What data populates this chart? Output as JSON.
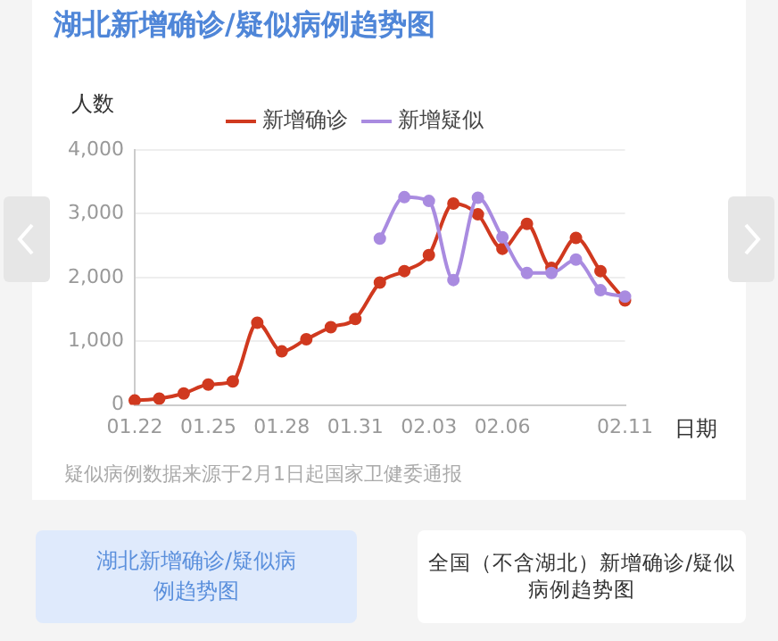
{
  "chart_data": {
    "type": "line",
    "title": "湖北新增确诊/疑似病例趋势图",
    "ylabel": "人数",
    "xlabel": "日期",
    "categories": [
      "01.22",
      null,
      null,
      "01.25",
      null,
      null,
      "01.28",
      null,
      null,
      "01.31",
      null,
      null,
      "02.03",
      null,
      null,
      "02.06",
      null,
      null,
      null,
      null,
      "02.11"
    ],
    "series": [
      {
        "name": "新增确诊",
        "color": "#d0391f",
        "values": [
          70,
          100,
          180,
          320,
          370,
          1290,
          840,
          1030,
          1220,
          1350,
          1920,
          2100,
          2350,
          3160,
          2990,
          2450,
          2840,
          2150,
          2620,
          2100,
          1640
        ]
      },
      {
        "name": "新增疑似",
        "color": "#a98be0",
        "values": [
          null,
          null,
          null,
          null,
          null,
          null,
          null,
          null,
          null,
          null,
          2610,
          3260,
          3200,
          1960,
          3250,
          2630,
          2070,
          2070,
          2280,
          1800,
          1700
        ]
      }
    ],
    "ylim": [
      0,
      4000
    ],
    "yticks": [
      0,
      {
        "value": 1000,
        "label": "1,000"
      },
      {
        "value": 2000,
        "label": "2,000"
      },
      {
        "value": 3000,
        "label": "3,000"
      },
      {
        "value": 4000,
        "label": "4,000"
      }
    ],
    "grid": "y",
    "legend": "top",
    "marker": "circle",
    "line_style": "solid",
    "annotations": [
      "疑似病例数据来源于2月1日起国家卫健委通报",
      "湖北新增确诊/疑似病例趋势图",
      "全国（不含湖北）新增确诊/疑似病例趋势图"
    ]
  }
}
